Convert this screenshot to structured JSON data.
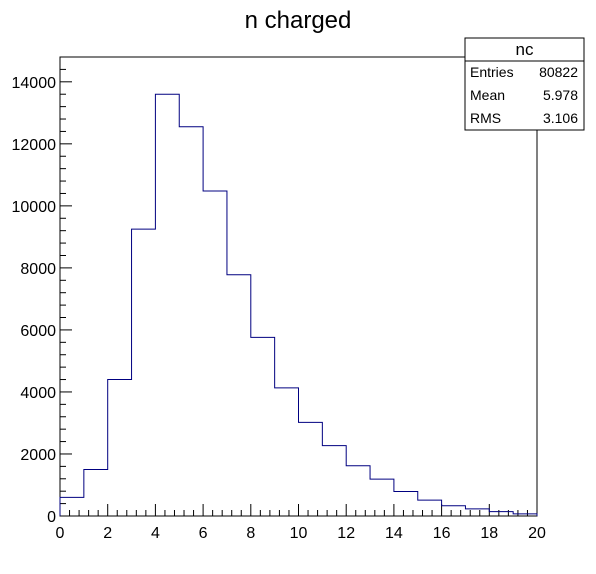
{
  "chart_data": {
    "type": "bar",
    "title": "n charged",
    "xlabel": "",
    "ylabel": "",
    "bin_edges": [
      0,
      1,
      2,
      3,
      4,
      5,
      6,
      7,
      8,
      9,
      10,
      11,
      12,
      13,
      14,
      15,
      16,
      17,
      18,
      19,
      20
    ],
    "values": [
      600,
      1500,
      4400,
      9250,
      13600,
      12550,
      10480,
      7780,
      5760,
      4130,
      3020,
      2270,
      1620,
      1190,
      790,
      510,
      330,
      230,
      140,
      70
    ],
    "xlim": [
      0,
      20
    ],
    "ylim": [
      0,
      14800
    ],
    "x_ticks": [
      "0",
      "2",
      "4",
      "6",
      "8",
      "10",
      "12",
      "14",
      "16",
      "18",
      "20"
    ],
    "y_ticks": [
      "0",
      "2000",
      "4000",
      "6000",
      "8000",
      "10000",
      "12000",
      "14000"
    ],
    "line_color": "#000080",
    "grid": false,
    "legend_position": "top-right",
    "stats": {
      "name": "nc",
      "rows": [
        {
          "label": "Entries",
          "value": "80822"
        },
        {
          "label": "Mean",
          "value": "5.978"
        },
        {
          "label": "RMS",
          "value": "3.106"
        }
      ]
    }
  }
}
